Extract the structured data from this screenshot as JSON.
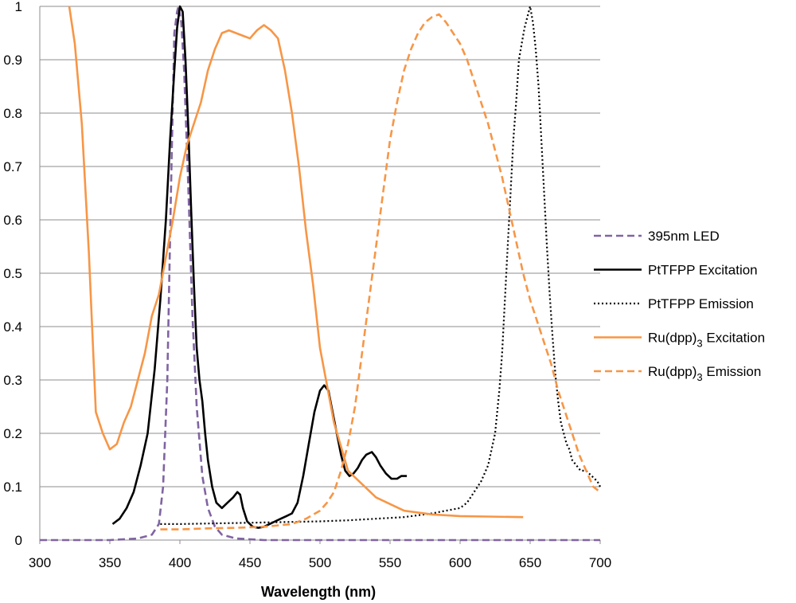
{
  "chart_data": {
    "type": "line",
    "title": "",
    "xlabel": "Wavelength (nm)",
    "ylabel": "",
    "xlim": [
      300,
      700
    ],
    "ylim": [
      0,
      1
    ],
    "grid": "horizontal",
    "legend_position": "right",
    "x_ticks": [
      "300",
      "350",
      "400",
      "450",
      "500",
      "550",
      "600",
      "650",
      "700"
    ],
    "y_ticks": [
      "0",
      "0.1",
      "0.2",
      "0.3",
      "0.4",
      "0.5",
      "0.6",
      "0.7",
      "0.8",
      "0.9",
      "1"
    ],
    "series": [
      {
        "name": "395nm LED",
        "legend_label": "395nm LED",
        "legend_sub": "",
        "legend_suffix": "",
        "color": "#8064a2",
        "style": "dashed",
        "x": [
          300,
          350,
          370,
          380,
          385,
          388,
          391,
          394,
          396,
          398,
          399,
          401,
          403,
          406,
          409,
          412,
          416,
          420,
          425,
          430,
          440,
          460,
          500,
          700
        ],
        "y": [
          0,
          0,
          0.003,
          0.01,
          0.03,
          0.1,
          0.3,
          0.7,
          0.95,
          0.99,
          1.0,
          0.97,
          0.88,
          0.66,
          0.42,
          0.25,
          0.12,
          0.06,
          0.025,
          0.01,
          0.003,
          0,
          0,
          0
        ]
      },
      {
        "name": "PtTFPP Excitation",
        "legend_label": "PtTFPP Excitation",
        "legend_sub": "",
        "legend_suffix": "",
        "color": "#000000",
        "style": "solid",
        "x": [
          352,
          357,
          362,
          367,
          372,
          377,
          382,
          386,
          390,
          393,
          396,
          398,
          400,
          402,
          404,
          406,
          408,
          410,
          412,
          414,
          416,
          418,
          420,
          423,
          426,
          430,
          434,
          438,
          441,
          443,
          445,
          448,
          452,
          456,
          460,
          464,
          468,
          472,
          476,
          480,
          484,
          488,
          492,
          496,
          500,
          503,
          506,
          509,
          512,
          515,
          518,
          521,
          524,
          527,
          530,
          533,
          537,
          540,
          543,
          547,
          551,
          555,
          558,
          562
        ],
        "y": [
          0.03,
          0.04,
          0.06,
          0.09,
          0.14,
          0.2,
          0.32,
          0.45,
          0.6,
          0.75,
          0.88,
          0.96,
          1.0,
          0.99,
          0.9,
          0.77,
          0.62,
          0.48,
          0.36,
          0.3,
          0.26,
          0.2,
          0.15,
          0.1,
          0.07,
          0.06,
          0.07,
          0.08,
          0.09,
          0.085,
          0.06,
          0.035,
          0.025,
          0.023,
          0.025,
          0.03,
          0.035,
          0.04,
          0.045,
          0.05,
          0.07,
          0.12,
          0.18,
          0.24,
          0.28,
          0.29,
          0.28,
          0.24,
          0.2,
          0.16,
          0.13,
          0.12,
          0.125,
          0.135,
          0.15,
          0.16,
          0.165,
          0.155,
          0.14,
          0.125,
          0.115,
          0.115,
          0.12,
          0.12
        ]
      },
      {
        "name": "PtTFPP Emission",
        "legend_label": "PtTFPP Emission",
        "legend_sub": "",
        "legend_suffix": "",
        "color": "#000000",
        "style": "dotted",
        "x": [
          386,
          400,
          420,
          440,
          460,
          480,
          500,
          520,
          540,
          560,
          580,
          590,
          600,
          605,
          610,
          615,
          620,
          625,
          628,
          630,
          632,
          634,
          636,
          638,
          640,
          642,
          644,
          646,
          648,
          650,
          652,
          654,
          656,
          658,
          660,
          662,
          664,
          666,
          668,
          670,
          672,
          674,
          676,
          678,
          680,
          683,
          686,
          690,
          694,
          698,
          700
        ],
        "y": [
          0.03,
          0.03,
          0.031,
          0.032,
          0.033,
          0.034,
          0.035,
          0.037,
          0.04,
          0.043,
          0.05,
          0.055,
          0.06,
          0.07,
          0.09,
          0.11,
          0.14,
          0.2,
          0.28,
          0.35,
          0.45,
          0.55,
          0.65,
          0.75,
          0.82,
          0.9,
          0.93,
          0.96,
          0.98,
          1.0,
          0.97,
          0.92,
          0.85,
          0.75,
          0.65,
          0.55,
          0.46,
          0.38,
          0.31,
          0.26,
          0.22,
          0.2,
          0.18,
          0.17,
          0.15,
          0.14,
          0.13,
          0.13,
          0.12,
          0.11,
          0.1
        ]
      },
      {
        "name": "Ru(dpp)3 Excitation",
        "legend_label": "Ru(dpp)",
        "legend_sub": "3",
        "legend_suffix": " Excitation",
        "color": "#f79646",
        "style": "solid",
        "x": [
          321,
          325,
          330,
          335,
          340,
          345,
          350,
          355,
          360,
          365,
          370,
          375,
          380,
          385,
          390,
          395,
          400,
          405,
          410,
          415,
          420,
          425,
          430,
          435,
          440,
          445,
          450,
          455,
          460,
          465,
          470,
          475,
          480,
          485,
          490,
          495,
          500,
          510,
          520,
          540,
          560,
          580,
          600,
          620,
          645
        ],
        "y": [
          1.0,
          0.93,
          0.78,
          0.54,
          0.24,
          0.2,
          0.17,
          0.18,
          0.22,
          0.25,
          0.3,
          0.35,
          0.42,
          0.46,
          0.53,
          0.6,
          0.68,
          0.74,
          0.78,
          0.82,
          0.88,
          0.92,
          0.95,
          0.955,
          0.95,
          0.945,
          0.94,
          0.955,
          0.965,
          0.955,
          0.94,
          0.88,
          0.8,
          0.7,
          0.58,
          0.48,
          0.36,
          0.22,
          0.13,
          0.08,
          0.055,
          0.048,
          0.045,
          0.044,
          0.043
        ]
      },
      {
        "name": "Ru(dpp)3 Emission",
        "legend_label": "Ru(dpp)",
        "legend_sub": "3",
        "legend_suffix": " Emission",
        "color": "#f79646",
        "style": "dashed",
        "x": [
          386,
          400,
          420,
          440,
          460,
          480,
          490,
          500,
          505,
          510,
          515,
          520,
          525,
          530,
          535,
          540,
          545,
          550,
          555,
          560,
          565,
          570,
          575,
          580,
          585,
          590,
          595,
          600,
          605,
          610,
          615,
          620,
          625,
          630,
          635,
          640,
          645,
          650,
          655,
          660,
          665,
          670,
          675,
          680,
          685,
          690,
          695,
          700
        ],
        "y": [
          0.02,
          0.02,
          0.022,
          0.023,
          0.025,
          0.03,
          0.04,
          0.055,
          0.07,
          0.09,
          0.13,
          0.18,
          0.25,
          0.35,
          0.45,
          0.55,
          0.65,
          0.75,
          0.82,
          0.88,
          0.92,
          0.95,
          0.97,
          0.98,
          0.985,
          0.97,
          0.95,
          0.93,
          0.9,
          0.86,
          0.82,
          0.78,
          0.73,
          0.68,
          0.62,
          0.56,
          0.5,
          0.45,
          0.41,
          0.37,
          0.33,
          0.28,
          0.24,
          0.2,
          0.16,
          0.13,
          0.1,
          0.09
        ]
      }
    ]
  }
}
